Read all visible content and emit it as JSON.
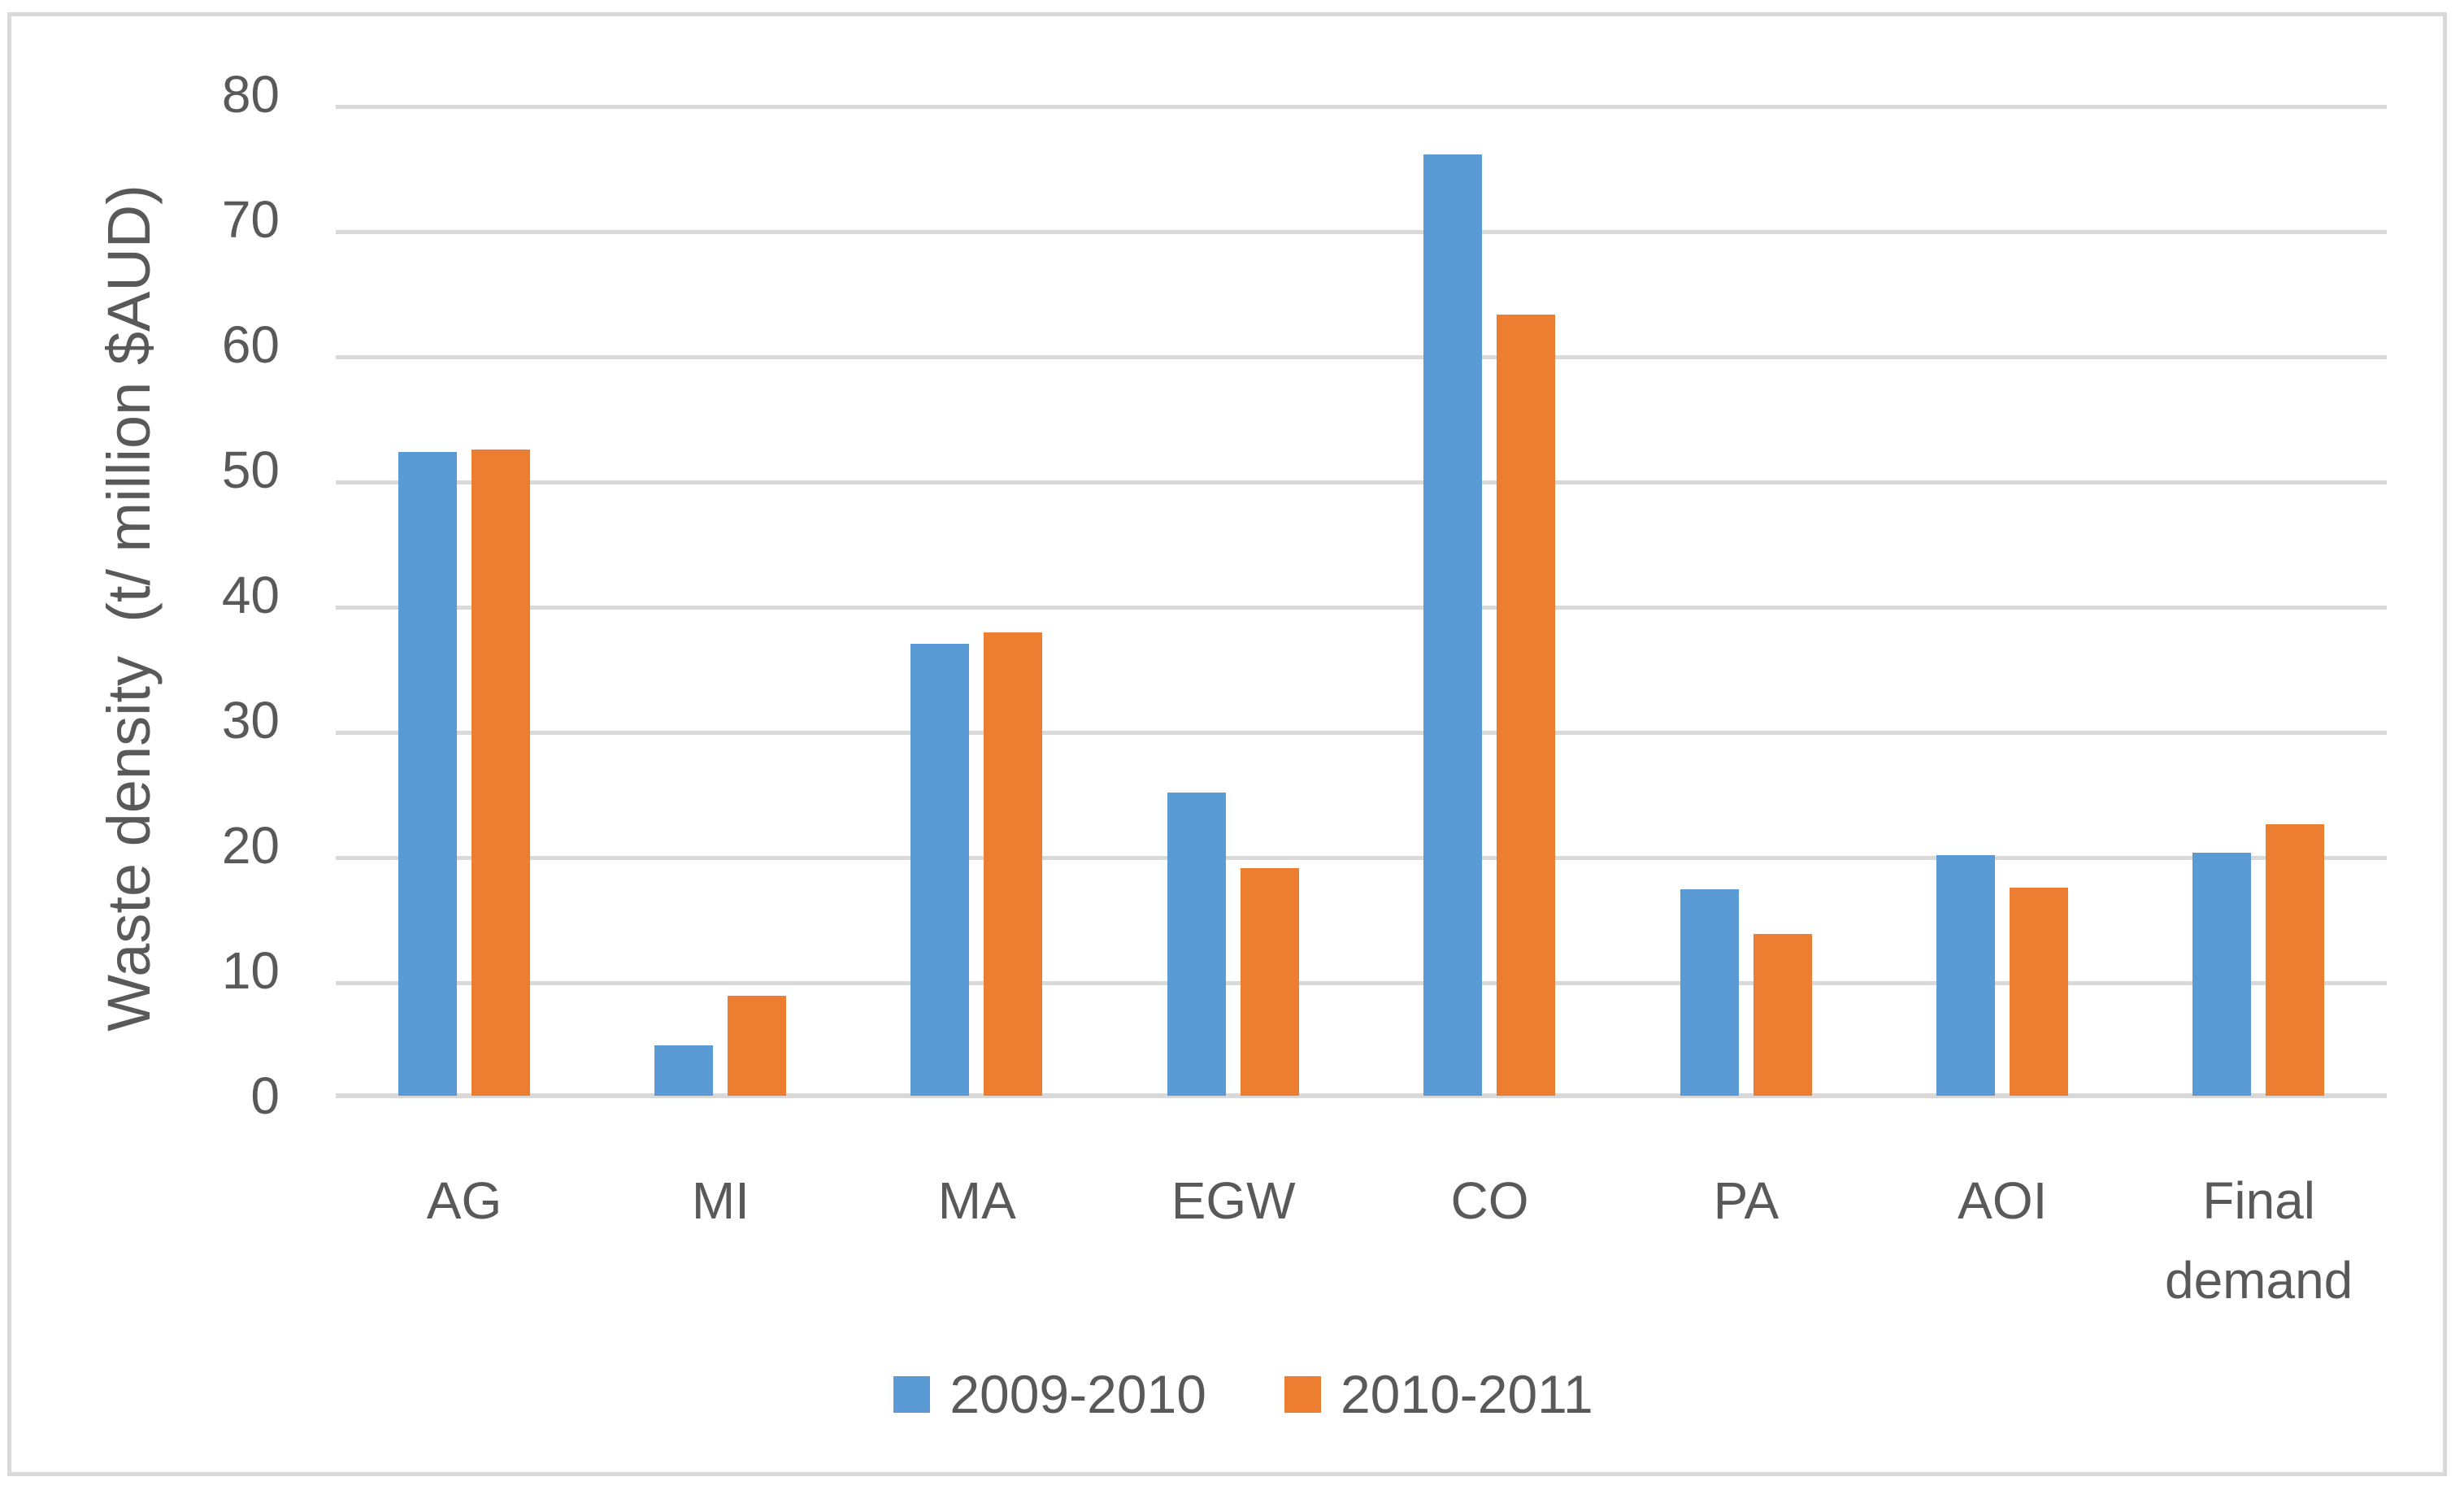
{
  "chart_data": {
    "type": "bar",
    "title": "",
    "categories": [
      "AG",
      "MI",
      "MA",
      "EGW",
      "CO",
      "PA",
      "AOI",
      "Final demand"
    ],
    "series": [
      {
        "name": "2009-2010",
        "color": "#5B9BD5",
        "values": [
          51.4,
          4.0,
          36.1,
          24.2,
          75.2,
          16.5,
          19.2,
          19.4
        ]
      },
      {
        "name": "2010-2011",
        "color": "#ED7D31",
        "values": [
          51.6,
          8.0,
          37.0,
          18.2,
          62.4,
          12.9,
          16.6,
          21.7
        ]
      }
    ],
    "xlabel": "",
    "ylabel": "Waste density  (t/ million $AUD)",
    "ylim": [
      0,
      80
    ],
    "ytick_step": 10,
    "ytick_labels": [
      "0",
      "10",
      "20",
      "30",
      "40",
      "50",
      "60",
      "70",
      "80"
    ],
    "grid": true,
    "legend_position": "bottom",
    "colors": {
      "gridline": "#D9D9D9",
      "axis_line": "#D9D9D9",
      "frame_border": "#D9D9D9",
      "text": "#595959",
      "background": "#FFFFFF"
    }
  }
}
